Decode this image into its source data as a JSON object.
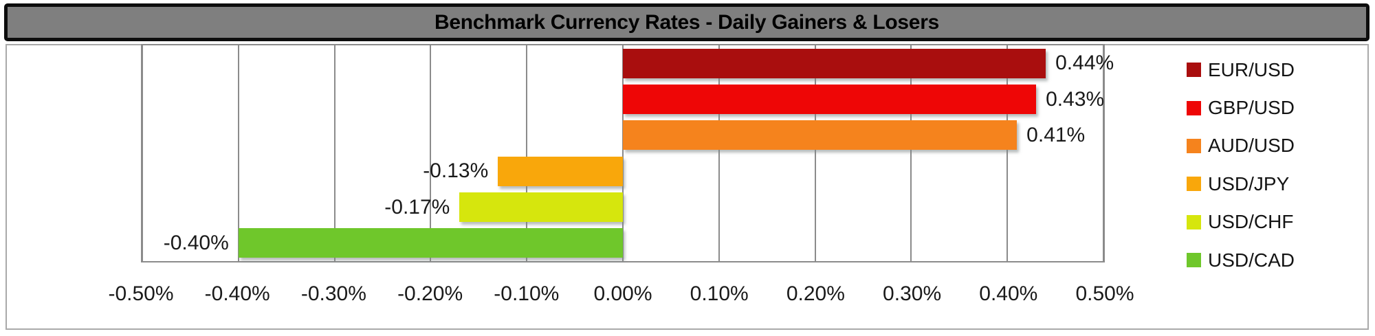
{
  "title": "Benchmark Currency Rates - Daily Gainers & Losers",
  "chart_data": {
    "type": "bar",
    "orientation": "horizontal",
    "title": "Benchmark Currency Rates - Daily Gainers & Losers",
    "xlabel": "",
    "ylabel": "",
    "xlim": [
      -0.5,
      0.5
    ],
    "grid": "vertical",
    "legend_position": "right",
    "x_ticks": [
      "-0.50%",
      "-0.40%",
      "-0.30%",
      "-0.20%",
      "-0.10%",
      "0.00%",
      "0.10%",
      "0.20%",
      "0.30%",
      "0.40%",
      "0.50%"
    ],
    "x_tick_values": [
      -0.5,
      -0.4,
      -0.3,
      -0.2,
      -0.1,
      0,
      0.1,
      0.2,
      0.3,
      0.4,
      0.5
    ],
    "series": [
      {
        "name": "EUR/USD",
        "value": 0.44,
        "label": "0.44%",
        "color": "#a90e0e"
      },
      {
        "name": "GBP/USD",
        "value": 0.43,
        "label": "0.43%",
        "color": "#ee0606"
      },
      {
        "name": "AUD/USD",
        "value": 0.41,
        "label": "0.41%",
        "color": "#f5831d"
      },
      {
        "name": "USD/JPY",
        "value": -0.13,
        "label": "-0.13%",
        "color": "#f9a70b"
      },
      {
        "name": "USD/CHF",
        "value": -0.17,
        "label": "-0.17%",
        "color": "#d6e60d"
      },
      {
        "name": "USD/CAD",
        "value": -0.4,
        "label": "-0.40%",
        "color": "#6fc72b"
      }
    ]
  },
  "colors": {
    "title_bg": "#7f7f7f",
    "title_text": "#000000",
    "title_border": "#0d0d0d",
    "chart_body_border": "#a9a9a9",
    "gridline": "#8b8b8b",
    "label_text": "#1a1a1a",
    "background": "#ffffff"
  }
}
